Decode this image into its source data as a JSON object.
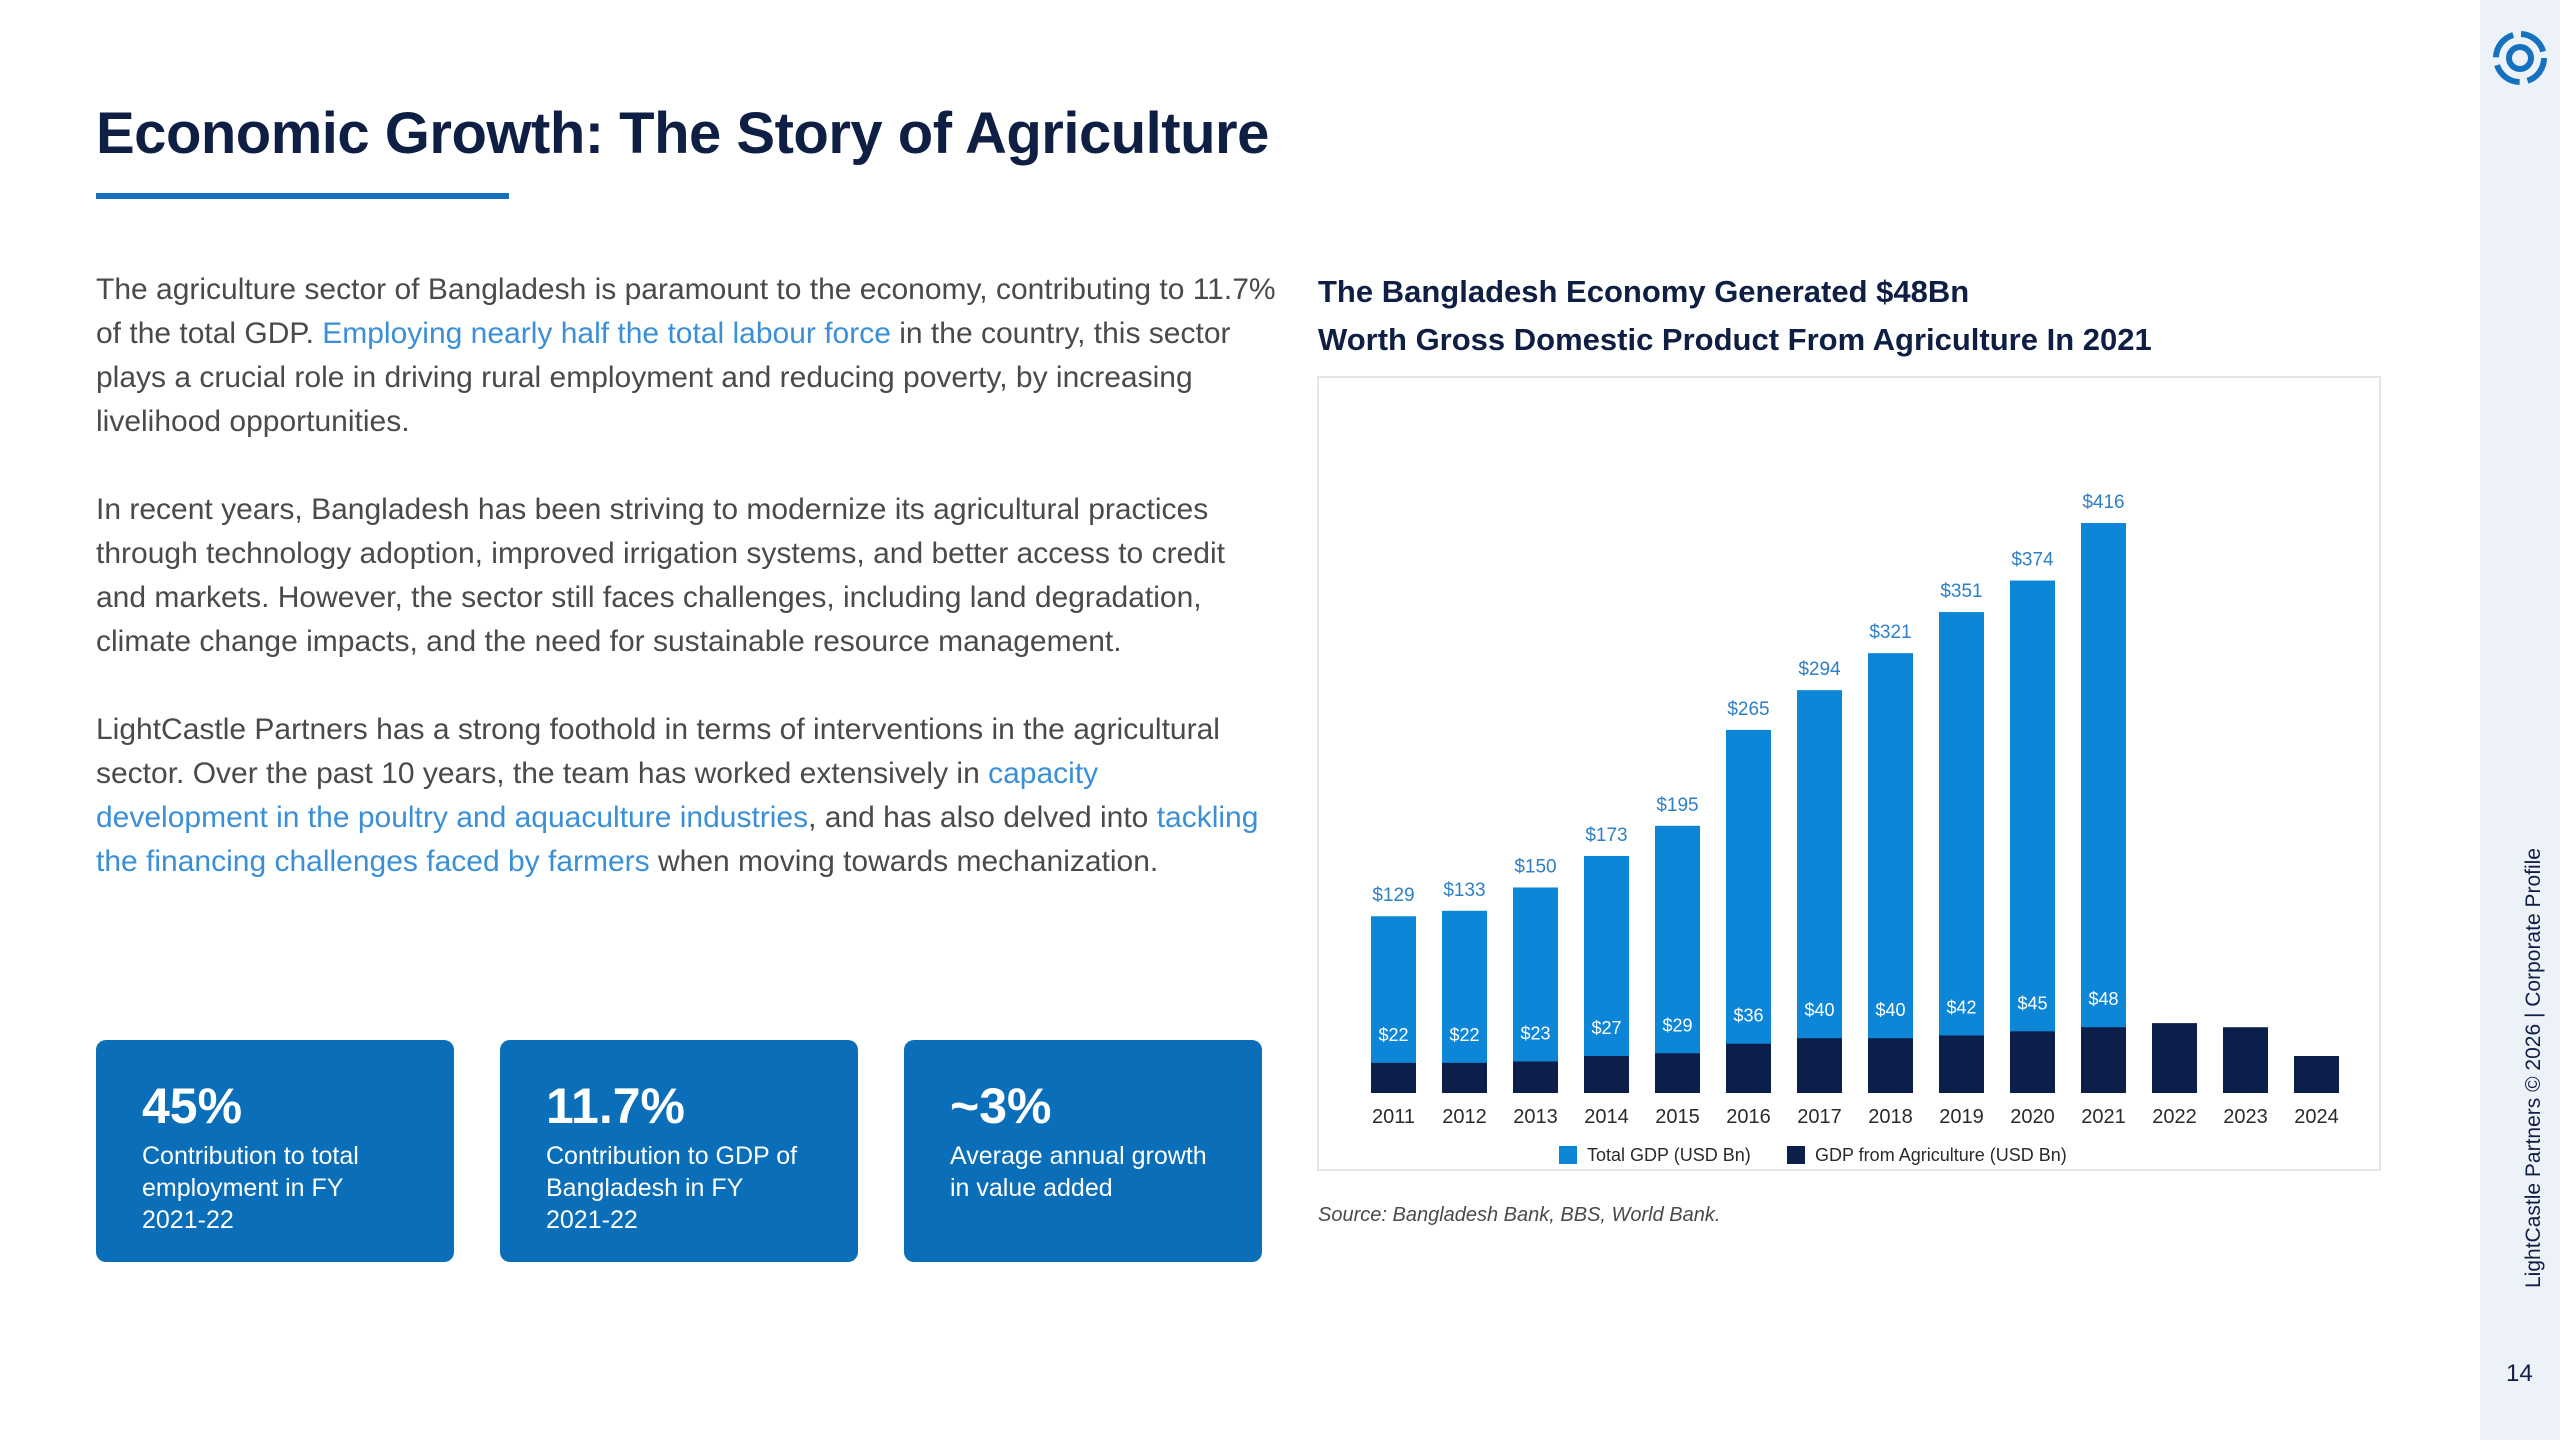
{
  "title": "Economic Growth: The Story of Agriculture",
  "paragraphs": {
    "p1": {
      "t1": "The agriculture sector of Bangladesh is paramount to the economy, contributing to 11.7% of the total GDP. ",
      "link1": "Employing nearly half the total labour force",
      "t2": " in the country, this sector plays a crucial role in driving rural employment and reducing poverty, by increasing livelihood opportunities."
    },
    "p2": "In recent years, Bangladesh has been striving to modernize its agricultural practices through technology adoption, improved irrigation systems, and better access to credit and markets. However, the sector still faces challenges, including land degradation, climate change impacts, and the need for sustainable resource management.",
    "p3": {
      "t1": "LightCastle Partners has a strong foothold in terms of interventions in the agricultural sector. Over the past 10 years, the team has worked extensively in ",
      "link1": "capacity development in the poultry and aquaculture industries",
      "t2": ", and has also delved into ",
      "link2": "tackling the financing challenges faced by farmers",
      "t3": " when moving towards mechanization."
    }
  },
  "stats": [
    {
      "value": "45%",
      "desc": "Contribution to total employment in FY 2021-22"
    },
    {
      "value": "11.7%",
      "desc": "Contribution to GDP of Bangladesh in FY 2021-22"
    },
    {
      "value": "~3%",
      "desc": "Average annual growth in value added"
    }
  ],
  "chart_heading": {
    "line1": "The Bangladesh Economy Generated $48Bn",
    "line2": "Worth Gross Domestic Product From Agriculture In 2021"
  },
  "source": "Source: Bangladesh Bank, BBS, World Bank.",
  "footer_text": "LightCastle Partners © 2026 | Corporate Profile",
  "page_number": "14",
  "chart_data": {
    "type": "bar",
    "categories": [
      "2011",
      "2012",
      "2013",
      "2014",
      "2015",
      "2016",
      "2017",
      "2018",
      "2019",
      "2020",
      "2021",
      "2022",
      "2023",
      "2024"
    ],
    "series": [
      {
        "name": "Total GDP (USD Bn)",
        "values": [
          129,
          133,
          150,
          173,
          195,
          265,
          294,
          321,
          351,
          374,
          416,
          null,
          null,
          null
        ],
        "labels": [
          "$129",
          "$133",
          "$150",
          "$173",
          "$195",
          "$265",
          "$294",
          "$321",
          "$351",
          "$374",
          "$416",
          "",
          "",
          ""
        ],
        "color": "#0e86d8"
      },
      {
        "name": "GDP from Agriculture (USD Bn)",
        "values": [
          22,
          22,
          23,
          27,
          29,
          36,
          40,
          40,
          42,
          45,
          48,
          51,
          48,
          27
        ],
        "labels": [
          "$22",
          "$22",
          "$23",
          "$27",
          "$29",
          "$36",
          "$40",
          "$40",
          "$42",
          "$45",
          "$48",
          "",
          "",
          ""
        ],
        "color": "#0c1e4a"
      }
    ],
    "ylim": [
      0,
      440
    ],
    "legend": "bottom",
    "grid": false
  },
  "colors": {
    "title": "#0f1f44",
    "accent": "#1570c0",
    "link": "#3a8fd6",
    "card": "#0a6fb8"
  }
}
